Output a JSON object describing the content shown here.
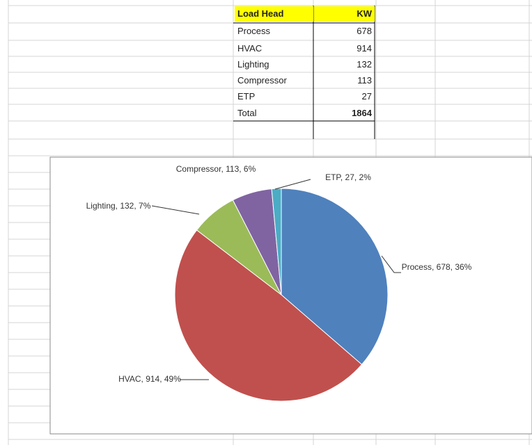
{
  "table": {
    "header": [
      "Load Head",
      "KW"
    ],
    "rows": [
      [
        "Process",
        678
      ],
      [
        "HVAC",
        914
      ],
      [
        "Lighting",
        132
      ],
      [
        "Compressor",
        113
      ],
      [
        "ETP",
        27
      ]
    ],
    "total": [
      "Total",
      1864
    ]
  },
  "chart_data": {
    "type": "pie",
    "categories": [
      "Process",
      "HVAC",
      "Lighting",
      "Compressor",
      "ETP"
    ],
    "values": [
      678,
      914,
      132,
      113,
      27
    ],
    "value_labels": [
      "Process, 678, 36%",
      "HVAC, 914, 49%",
      "Lighting, 132, 7%",
      "Compressor, 113, 6%",
      "ETP, 27, 2%"
    ],
    "colors": [
      "#4f81bd",
      "#c0504d",
      "#9bbb59",
      "#8064a2",
      "#4bacc6"
    ]
  }
}
